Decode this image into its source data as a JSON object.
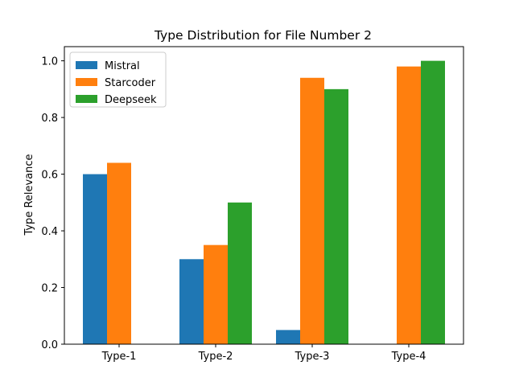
{
  "chart_data": {
    "type": "bar",
    "title": "Type Distribution for File Number 2",
    "xlabel": "",
    "ylabel": "Type Relevance",
    "categories": [
      "Type-1",
      "Type-2",
      "Type-3",
      "Type-4"
    ],
    "series": [
      {
        "name": "Mistral",
        "values": [
          0.6,
          0.3,
          0.05,
          0.0
        ],
        "color": "#1f77b4"
      },
      {
        "name": "Starcoder",
        "values": [
          0.64,
          0.35,
          0.94,
          0.98
        ],
        "color": "#ff7f0e"
      },
      {
        "name": "Deepseek",
        "values": [
          0.0,
          0.5,
          0.9,
          1.0
        ],
        "color": "#2ca02c"
      }
    ],
    "ylim": [
      0,
      1.05
    ],
    "yticks": [
      "0.0",
      "0.2",
      "0.4",
      "0.6",
      "0.8",
      "1.0"
    ],
    "legend": "top-left",
    "grid": false
  }
}
